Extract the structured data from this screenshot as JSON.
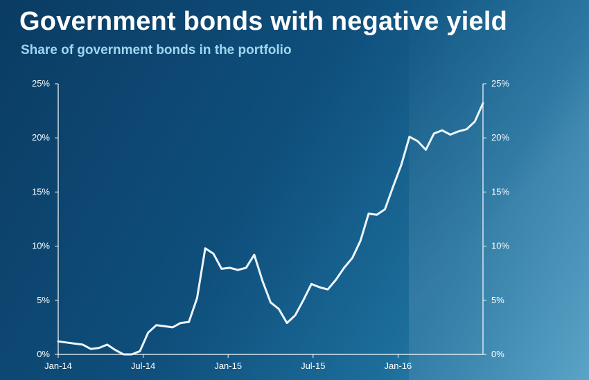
{
  "header": {
    "title": "Government bonds with negative yield",
    "subtitle": "Share of government bonds in the portfolio"
  },
  "chart_data": {
    "type": "line",
    "title": "Government bonds with negative yield",
    "subtitle": "Share of government bonds in the portfolio",
    "xlabel": "",
    "ylabel": "",
    "ylim": [
      0,
      25
    ],
    "y_ticks": [
      "0%",
      "5%",
      "10%",
      "15%",
      "20%",
      "25%"
    ],
    "y2_ticks": [
      "0%",
      "5%",
      "10%",
      "15%",
      "20%",
      "25%"
    ],
    "x_ticks": [
      "Jan-14",
      "Jul-14",
      "Jan-15",
      "Jul-15",
      "Jan-16"
    ],
    "grid": false,
    "line_color": "#eef6fb",
    "series": [
      {
        "values": [
          1.2,
          1.1,
          1.0,
          0.9,
          0.5,
          0.6,
          0.9,
          0.4,
          0.0,
          0.0,
          0.3,
          2.0,
          2.7,
          2.6,
          2.5,
          2.9,
          3.0,
          5.2,
          9.8,
          9.3,
          7.9,
          8.0,
          7.8,
          8.0,
          9.2,
          6.8,
          4.8,
          4.2,
          2.9,
          3.6,
          5.0,
          6.5,
          6.2,
          6.0,
          6.9,
          8.0,
          8.9,
          10.5,
          13.0,
          12.9,
          13.4,
          15.5,
          17.5,
          20.1,
          19.7,
          18.9,
          20.4,
          20.7,
          20.3,
          20.6,
          20.8,
          21.5,
          23.2
        ]
      }
    ]
  }
}
